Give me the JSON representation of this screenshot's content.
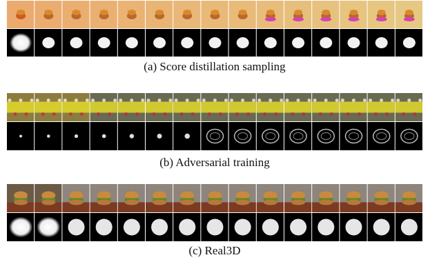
{
  "figure": {
    "captions": [
      "(a) Score distillation sampling",
      "(b) Adversarial training",
      "(c) Real3D"
    ]
  }
}
